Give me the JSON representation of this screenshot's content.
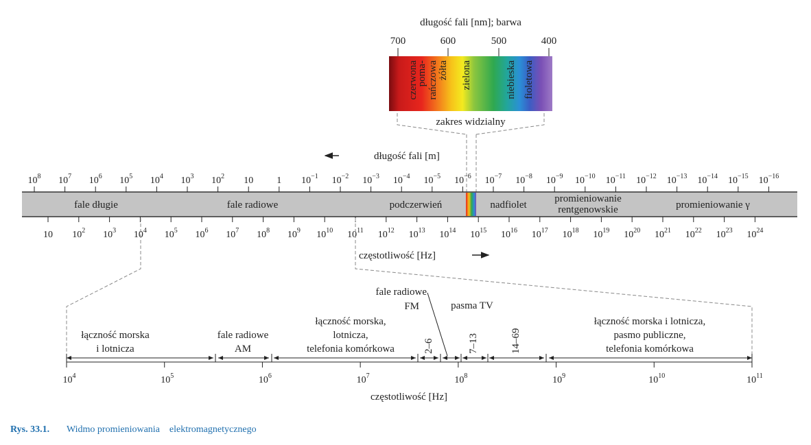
{
  "visible_panel": {
    "title": "długość fali [nm]; barwa",
    "ticks": [
      "700",
      "600",
      "500",
      "400"
    ],
    "colors": [
      "czerwona",
      "poma-\nrańczowa",
      "żółta",
      "zielona",
      "niebieska",
      "fioletowa"
    ],
    "caption": "zakres widzialny"
  },
  "main_axis": {
    "wavelength_label": "długość fali [m]",
    "wavelength_ticks": [
      {
        "base": "10",
        "exp": "8"
      },
      {
        "base": "10",
        "exp": "7"
      },
      {
        "base": "10",
        "exp": "6"
      },
      {
        "base": "10",
        "exp": "5"
      },
      {
        "base": "10",
        "exp": "4"
      },
      {
        "base": "10",
        "exp": "3"
      },
      {
        "base": "10",
        "exp": "2"
      },
      {
        "base": "10",
        "exp": ""
      },
      {
        "base": "1",
        "exp": ""
      },
      {
        "base": "10",
        "exp": "−1"
      },
      {
        "base": "10",
        "exp": "−2"
      },
      {
        "base": "10",
        "exp": "−3"
      },
      {
        "base": "10",
        "exp": "−4"
      },
      {
        "base": "10",
        "exp": "−5"
      },
      {
        "base": "10",
        "exp": "−6"
      },
      {
        "base": "10",
        "exp": "−7"
      },
      {
        "base": "10",
        "exp": "−8"
      },
      {
        "base": "10",
        "exp": "−9"
      },
      {
        "base": "10",
        "exp": "−10"
      },
      {
        "base": "10",
        "exp": "−11"
      },
      {
        "base": "10",
        "exp": "−12"
      },
      {
        "base": "10",
        "exp": "−13"
      },
      {
        "base": "10",
        "exp": "−14"
      },
      {
        "base": "10",
        "exp": "−15"
      },
      {
        "base": "10",
        "exp": "−16"
      }
    ],
    "bands": {
      "long_waves": "fale długie",
      "radio": "fale radiowe",
      "infrared": "podczerwień",
      "ultraviolet": "nadfiolet",
      "xray_line1": "promieniowanie",
      "xray_line2": "rentgenowskie",
      "gamma": "promieniowanie γ"
    },
    "frequency_ticks": [
      {
        "base": "10",
        "exp": ""
      },
      {
        "base": "10",
        "exp": "2"
      },
      {
        "base": "10",
        "exp": "3"
      },
      {
        "base": "10",
        "exp": "4"
      },
      {
        "base": "10",
        "exp": "5"
      },
      {
        "base": "10",
        "exp": "6"
      },
      {
        "base": "10",
        "exp": "7"
      },
      {
        "base": "10",
        "exp": "8"
      },
      {
        "base": "10",
        "exp": "9"
      },
      {
        "base": "10",
        "exp": "10"
      },
      {
        "base": "10",
        "exp": "11"
      },
      {
        "base": "10",
        "exp": "12"
      },
      {
        "base": "10",
        "exp": "13"
      },
      {
        "base": "10",
        "exp": "14"
      },
      {
        "base": "10",
        "exp": "15"
      },
      {
        "base": "10",
        "exp": "16"
      },
      {
        "base": "10",
        "exp": "17"
      },
      {
        "base": "10",
        "exp": "18"
      },
      {
        "base": "10",
        "exp": "19"
      },
      {
        "base": "10",
        "exp": "20"
      },
      {
        "base": "10",
        "exp": "21"
      },
      {
        "base": "10",
        "exp": "22"
      },
      {
        "base": "10",
        "exp": "23"
      },
      {
        "base": "10",
        "exp": "24"
      }
    ],
    "frequency_label": "częstotliwość [Hz]"
  },
  "radio_detail": {
    "fm_line1": "fale radiowe",
    "fm_line2": "FM",
    "tv": "pasma TV",
    "ranges": [
      {
        "l1": "łączność morska",
        "l2": "i lotnicza",
        "l3": ""
      },
      {
        "l1": "fale radiowe",
        "l2": "AM",
        "l3": ""
      },
      {
        "l1": "łączność morska,",
        "l2": "lotnicza,",
        "l3": "telefonia komórkowa"
      },
      {
        "l1": "łączność morska i lotnicza,",
        "l2": "pasmo publiczne,",
        "l3": "telefonia komórkowa"
      }
    ],
    "tv_bands": [
      "2–6",
      "7–13",
      "14–69"
    ],
    "ticks": [
      {
        "base": "10",
        "exp": "4"
      },
      {
        "base": "10",
        "exp": "5"
      },
      {
        "base": "10",
        "exp": "6"
      },
      {
        "base": "10",
        "exp": "7"
      },
      {
        "base": "10",
        "exp": "8"
      },
      {
        "base": "10",
        "exp": "9"
      },
      {
        "base": "10",
        "exp": "10"
      },
      {
        "base": "10",
        "exp": "11"
      }
    ],
    "label": "częstotliwość [Hz]"
  },
  "caption": {
    "number": "Rys. 33.1.",
    "text": "Widmo promieniowania    elektromagnetycznego"
  }
}
